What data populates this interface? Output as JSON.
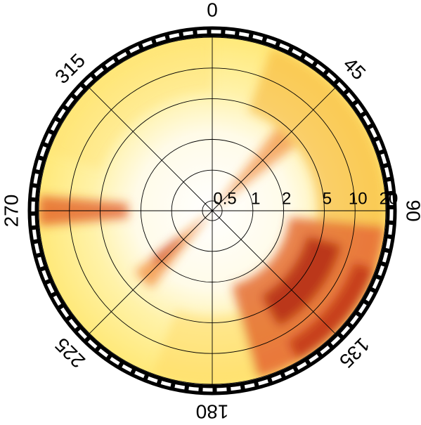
{
  "chart_data": {
    "type": "polar",
    "theta_zero": "N",
    "theta_direction": "clockwise",
    "thetaticks": [
      0,
      45,
      90,
      135,
      180,
      225,
      270,
      315
    ],
    "rscale": "log",
    "rlim": [
      0.4,
      20
    ],
    "rticks": [
      0.5,
      1,
      2,
      5,
      10,
      20
    ],
    "grid": true
  }
}
